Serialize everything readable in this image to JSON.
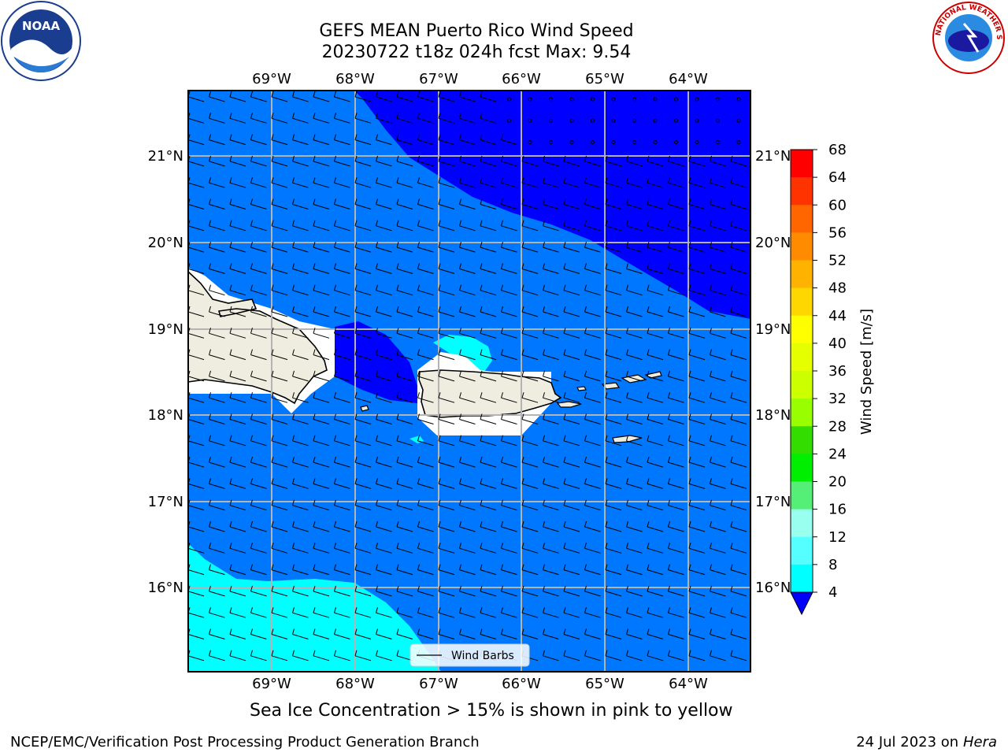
{
  "title": {
    "line1": "GEFS MEAN Puerto Rico Wind Speed",
    "line2": "20230722 t18z 024h fcst   Max: 9.54"
  },
  "map": {
    "lon_labels": [
      "69°W",
      "68°W",
      "67°W",
      "66°W",
      "65°W",
      "64°W"
    ],
    "lat_labels": [
      "21°N",
      "20°N",
      "19°N",
      "18°N",
      "17°N",
      "16°N"
    ],
    "legend_label": "Wind Barbs"
  },
  "colorbar": {
    "label": "Wind Speed [m/s]",
    "ticks": [
      "68",
      "64",
      "60",
      "56",
      "52",
      "48",
      "44",
      "40",
      "36",
      "32",
      "28",
      "24",
      "20",
      "16",
      "12",
      "8",
      "4"
    ],
    "colors": [
      "#ff0000",
      "#ff3300",
      "#ff6600",
      "#ff8c00",
      "#ffb300",
      "#ffd700",
      "#ffff00",
      "#e6ff00",
      "#ccff00",
      "#99ff00",
      "#33dd00",
      "#00ee00",
      "#55ee77",
      "#99ffee",
      "#55ffff",
      "#00ffff",
      "#0077ff"
    ],
    "extend_color": "#0000ff"
  },
  "colors": {
    "ocean_light": "#0077ff",
    "ocean_dark": "#0000ff",
    "cyan": "#00ffff",
    "land": "#eeede0"
  },
  "logos": {
    "noaa_text": "NOAA",
    "nws_text": "NATIONAL WEATHER SERVICE"
  },
  "note": "Sea Ice Concentration > 15% is shown in pink to yellow",
  "footer": {
    "left": "NCEP/EMC/Verification Post Processing Product Generation Branch",
    "right_prefix": "24 Jul 2023 on ",
    "right_em": "Hera"
  }
}
